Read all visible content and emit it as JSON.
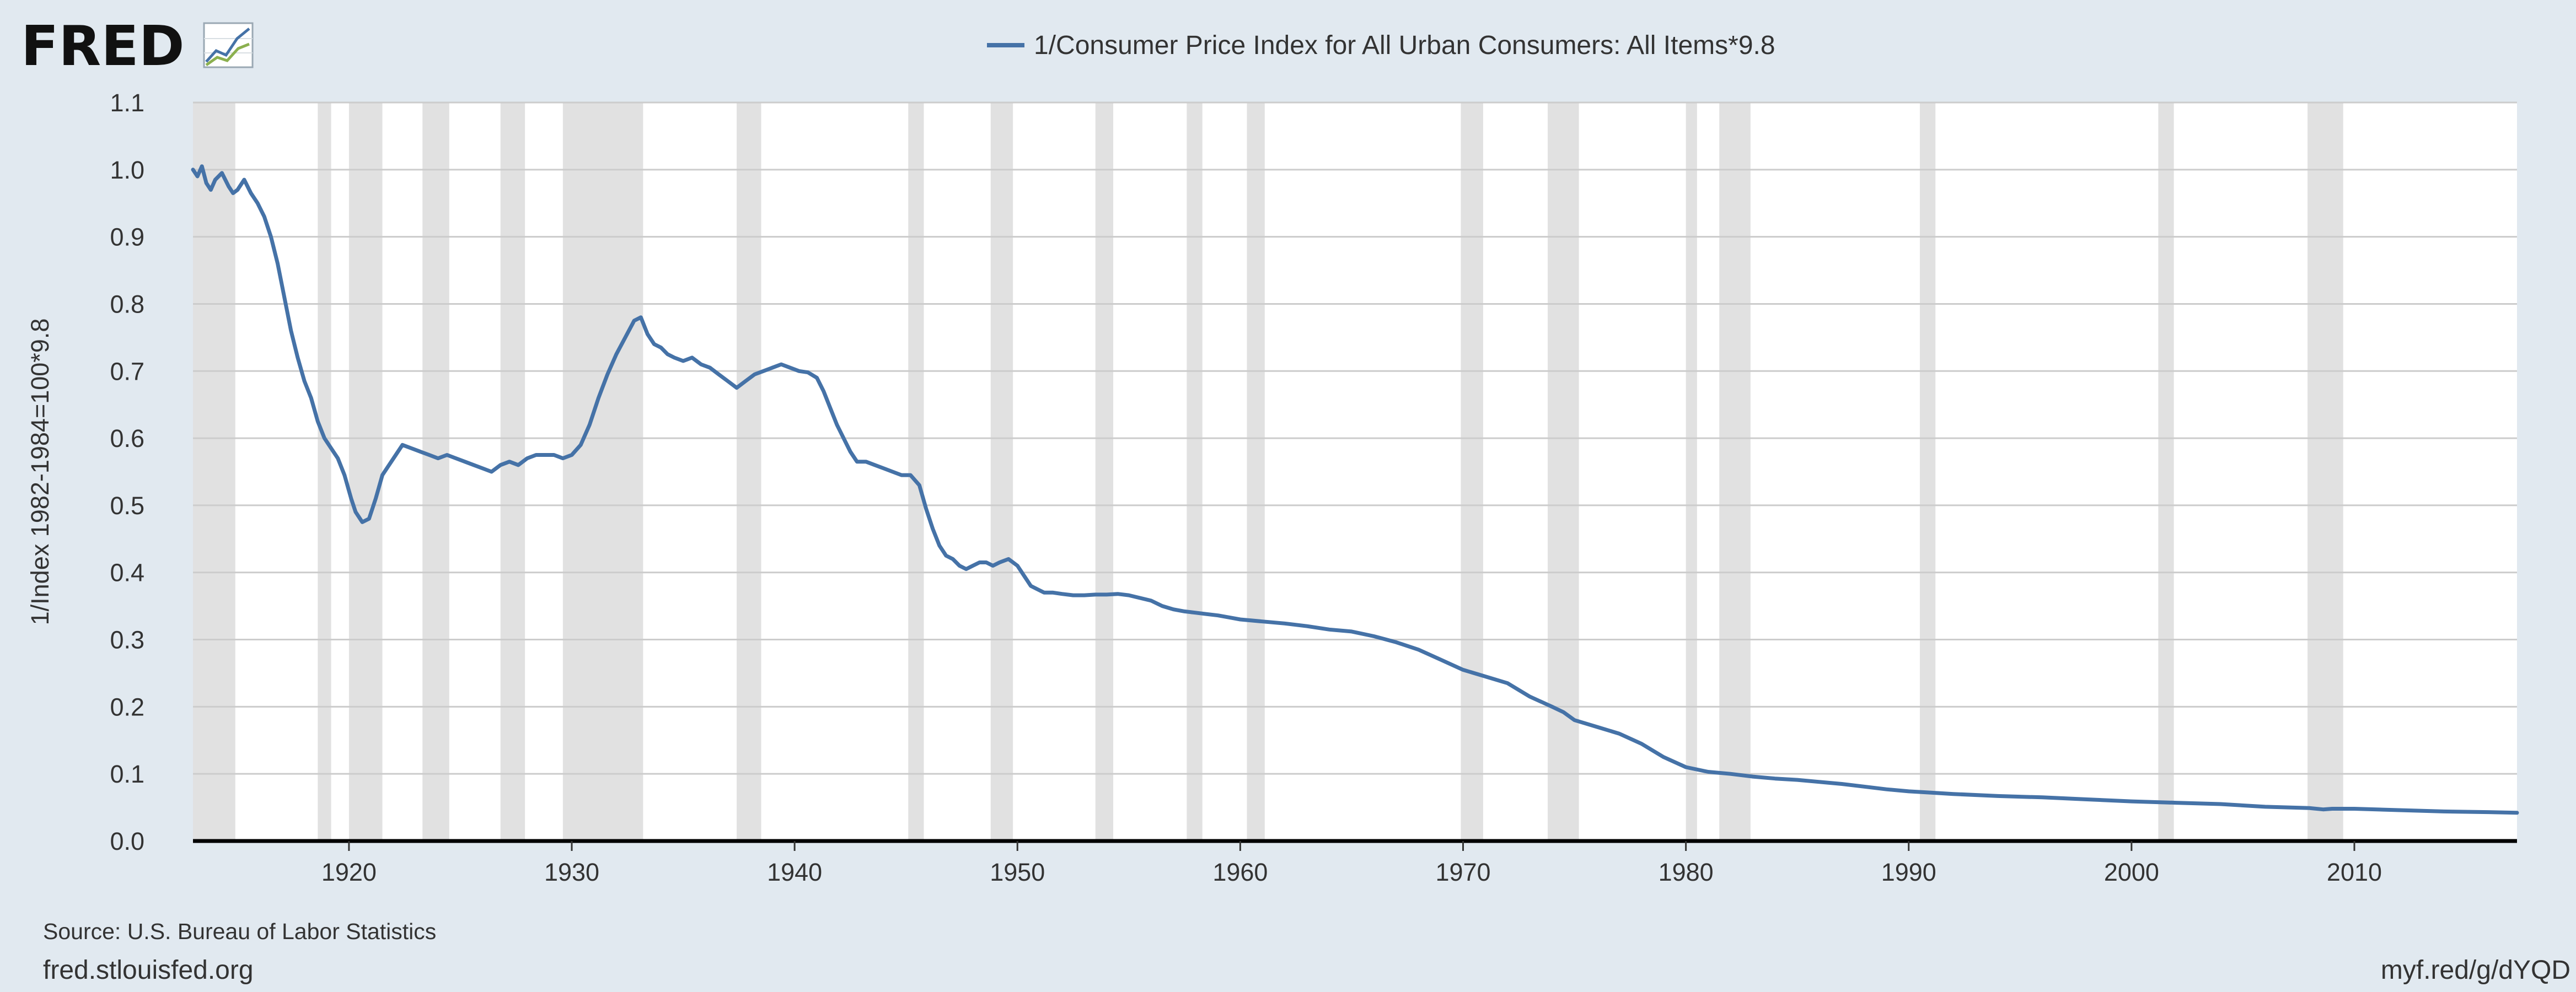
{
  "brand": {
    "name": "FRED"
  },
  "source_note": "Source: U.S. Bureau of Labor Statistics",
  "site": "fred.stlouisfed.org",
  "short_link": "myf.red/g/dYQD",
  "chart_data": {
    "type": "line",
    "ylabel": "1/Index 1982-1984=100*9.8",
    "xlim": [
      1913,
      2017.3
    ],
    "ylim": [
      0.0,
      1.1
    ],
    "yticks": [
      0.0,
      0.1,
      0.2,
      0.3,
      0.4,
      0.5,
      0.6,
      0.7,
      0.8,
      0.9,
      1.0,
      1.1
    ],
    "xticks": [
      1920,
      1930,
      1940,
      1950,
      1960,
      1970,
      1980,
      1990,
      2000,
      2010
    ],
    "grid": true,
    "legend_position": "top-center",
    "colors": {
      "line": "#4572a7",
      "recession": "#e1e1e1",
      "plot_bg": "#ffffff",
      "page_bg": "#e1e9f0"
    },
    "recessions": [
      [
        1913.0,
        1914.9
      ],
      [
        1918.6,
        1919.2
      ],
      [
        1920.0,
        1921.5
      ],
      [
        1923.3,
        1924.5
      ],
      [
        1926.8,
        1927.9
      ],
      [
        1929.6,
        1933.2
      ],
      [
        1937.4,
        1938.5
      ],
      [
        1945.1,
        1945.8
      ],
      [
        1948.8,
        1949.8
      ],
      [
        1953.5,
        1954.3
      ],
      [
        1957.6,
        1958.3
      ],
      [
        1960.3,
        1961.1
      ],
      [
        1969.9,
        1970.9
      ],
      [
        1973.8,
        1975.2
      ],
      [
        1980.0,
        1980.5
      ],
      [
        1981.5,
        1982.9
      ],
      [
        1990.5,
        1991.2
      ],
      [
        2001.2,
        2001.9
      ],
      [
        2007.9,
        2009.5
      ]
    ],
    "series": [
      {
        "name": "1/Consumer Price Index for All Urban Consumers: All Items*9.8",
        "x": [
          1913.0,
          1913.2,
          1913.4,
          1913.6,
          1913.8,
          1914.0,
          1914.3,
          1914.6,
          1914.8,
          1915.0,
          1915.3,
          1915.6,
          1915.9,
          1916.2,
          1916.5,
          1916.8,
          1917.1,
          1917.4,
          1917.7,
          1918.0,
          1918.3,
          1918.6,
          1918.9,
          1919.2,
          1919.5,
          1919.8,
          1920.1,
          1920.3,
          1920.6,
          1920.9,
          1921.2,
          1921.5,
          1921.8,
          1922.1,
          1922.4,
          1922.8,
          1923.2,
          1923.6,
          1924.0,
          1924.4,
          1924.8,
          1925.2,
          1925.6,
          1926.0,
          1926.4,
          1926.8,
          1927.2,
          1927.6,
          1928.0,
          1928.4,
          1928.8,
          1929.2,
          1929.6,
          1930.0,
          1930.4,
          1930.8,
          1931.2,
          1931.6,
          1932.0,
          1932.4,
          1932.8,
          1933.1,
          1933.4,
          1933.7,
          1934.0,
          1934.3,
          1934.6,
          1935.0,
          1935.4,
          1935.8,
          1936.2,
          1936.6,
          1937.0,
          1937.4,
          1937.8,
          1938.2,
          1938.6,
          1939.0,
          1939.4,
          1939.8,
          1940.2,
          1940.6,
          1941.0,
          1941.3,
          1941.6,
          1941.9,
          1942.2,
          1942.5,
          1942.8,
          1943.2,
          1943.6,
          1944.0,
          1944.4,
          1944.8,
          1945.2,
          1945.6,
          1945.9,
          1946.2,
          1946.5,
          1946.8,
          1947.1,
          1947.4,
          1947.7,
          1948.0,
          1948.3,
          1948.6,
          1948.9,
          1949.2,
          1949.6,
          1950.0,
          1950.3,
          1950.6,
          1950.9,
          1951.2,
          1951.6,
          1952.0,
          1952.5,
          1953.0,
          1953.5,
          1954.0,
          1954.5,
          1955.0,
          1955.5,
          1956.0,
          1956.5,
          1957.0,
          1957.5,
          1958.0,
          1958.5,
          1959.0,
          1959.5,
          1960.0,
          1961.0,
          1962.0,
          1963.0,
          1964.0,
          1965.0,
          1966.0,
          1967.0,
          1968.0,
          1969.0,
          1970.0,
          1971.0,
          1972.0,
          1973.0,
          1974.0,
          1974.5,
          1975.0,
          1976.0,
          1977.0,
          1978.0,
          1979.0,
          1980.0,
          1981.0,
          1982.0,
          1983.0,
          1984.0,
          1985.0,
          1986.0,
          1987.0,
          1988.0,
          1989.0,
          1990.0,
          1991.0,
          1992.0,
          1994.0,
          1996.0,
          1998.0,
          2000.0,
          2002.0,
          2004.0,
          2006.0,
          2008.0,
          2008.6,
          2009.0,
          2010.0,
          2012.0,
          2014.0,
          2016.0,
          2017.3
        ],
        "y": [
          1.0,
          0.99,
          1.005,
          0.98,
          0.97,
          0.985,
          0.995,
          0.975,
          0.965,
          0.97,
          0.985,
          0.965,
          0.95,
          0.93,
          0.9,
          0.86,
          0.81,
          0.76,
          0.72,
          0.685,
          0.66,
          0.625,
          0.6,
          0.585,
          0.57,
          0.545,
          0.51,
          0.49,
          0.475,
          0.48,
          0.51,
          0.545,
          0.56,
          0.575,
          0.59,
          0.585,
          0.58,
          0.575,
          0.57,
          0.575,
          0.57,
          0.565,
          0.56,
          0.555,
          0.55,
          0.56,
          0.565,
          0.56,
          0.57,
          0.575,
          0.575,
          0.575,
          0.57,
          0.575,
          0.59,
          0.62,
          0.66,
          0.695,
          0.725,
          0.75,
          0.775,
          0.78,
          0.755,
          0.74,
          0.735,
          0.725,
          0.72,
          0.715,
          0.72,
          0.71,
          0.705,
          0.695,
          0.685,
          0.675,
          0.685,
          0.695,
          0.7,
          0.705,
          0.71,
          0.705,
          0.7,
          0.698,
          0.69,
          0.67,
          0.645,
          0.62,
          0.6,
          0.58,
          0.565,
          0.565,
          0.56,
          0.555,
          0.55,
          0.545,
          0.545,
          0.53,
          0.495,
          0.465,
          0.44,
          0.425,
          0.42,
          0.41,
          0.405,
          0.41,
          0.415,
          0.415,
          0.41,
          0.415,
          0.42,
          0.41,
          0.395,
          0.38,
          0.375,
          0.37,
          0.37,
          0.368,
          0.366,
          0.366,
          0.367,
          0.367,
          0.368,
          0.366,
          0.362,
          0.358,
          0.35,
          0.345,
          0.342,
          0.34,
          0.338,
          0.336,
          0.333,
          0.33,
          0.327,
          0.324,
          0.32,
          0.315,
          0.312,
          0.305,
          0.296,
          0.285,
          0.27,
          0.255,
          0.245,
          0.235,
          0.215,
          0.2,
          0.192,
          0.18,
          0.17,
          0.16,
          0.145,
          0.125,
          0.11,
          0.103,
          0.1,
          0.096,
          0.093,
          0.091,
          0.088,
          0.085,
          0.081,
          0.077,
          0.074,
          0.072,
          0.07,
          0.067,
          0.065,
          0.062,
          0.059,
          0.057,
          0.055,
          0.051,
          0.049,
          0.047,
          0.048,
          0.048,
          0.046,
          0.044,
          0.043,
          0.042
        ]
      }
    ]
  }
}
